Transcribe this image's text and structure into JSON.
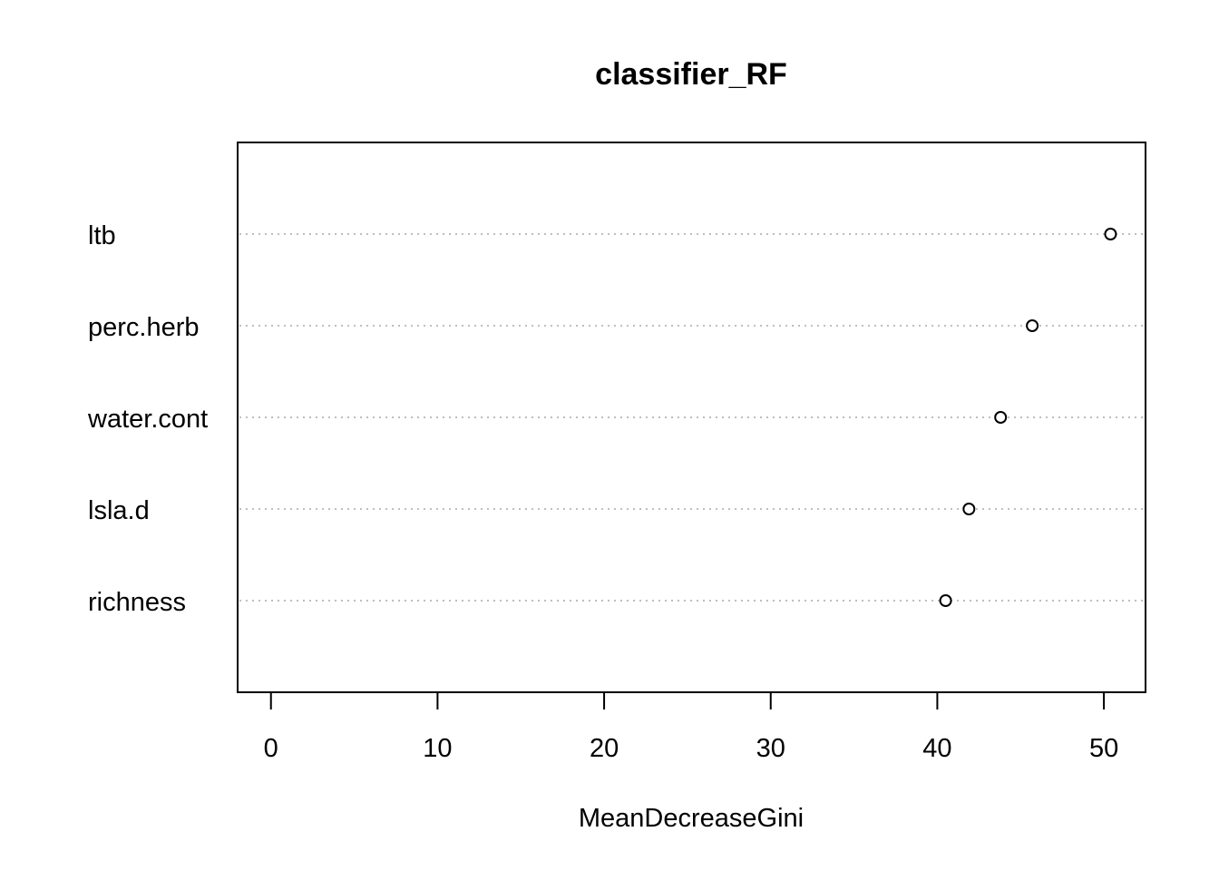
{
  "chart_data": {
    "type": "scatter",
    "subtype": "dotchart",
    "title": "classifier_RF",
    "xlabel": "MeanDecreaseGini",
    "ylabel": "",
    "categories": [
      "ltb",
      "perc.herb",
      "water.cont",
      "lsla.d",
      "richness"
    ],
    "values": [
      50.4,
      45.7,
      43.8,
      41.9,
      40.5
    ],
    "xlim": [
      -2,
      52.5
    ],
    "xticks": [
      0,
      10,
      20,
      30,
      40,
      50
    ],
    "xtick_labels": [
      "0",
      "10",
      "20",
      "30",
      "40",
      "50"
    ],
    "grid": "dotted-horizontal",
    "colors": {
      "points": "#000000",
      "gridlines": "#bebebe",
      "frame": "#000000"
    }
  }
}
